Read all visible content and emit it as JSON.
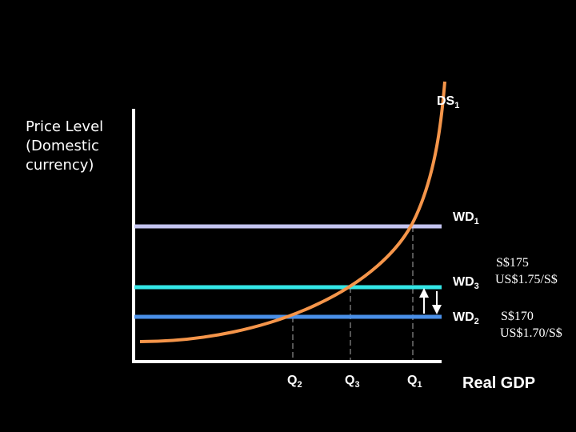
{
  "diagram": {
    "y_axis_label": [
      "Price Level",
      "(Domestic",
      "currency)"
    ],
    "x_axis_label": "Real GDP",
    "supply_curve": {
      "label": "DS",
      "subscript": "1",
      "color": "#f5954a"
    },
    "demand_lines": [
      {
        "id": "wd1",
        "label": "WD",
        "subscript": "1",
        "color": "#c4c4f0"
      },
      {
        "id": "wd3",
        "label": "WD",
        "subscript": "3",
        "color": "#33e6e6"
      },
      {
        "id": "wd2",
        "label": "WD",
        "subscript": "2",
        "color": "#4a90e8"
      }
    ],
    "quantities": [
      {
        "id": "q2",
        "label": "Q",
        "subscript": "2"
      },
      {
        "id": "q3",
        "label": "Q",
        "subscript": "3"
      },
      {
        "id": "q1",
        "label": "Q",
        "subscript": "1"
      }
    ],
    "annotations": {
      "wd3_price": "S$175",
      "wd3_rate": "US$1.75/S$",
      "wd2_price": "S$170",
      "wd2_rate": "US$1.70/S$"
    },
    "axis_color": "#ffffff"
  }
}
